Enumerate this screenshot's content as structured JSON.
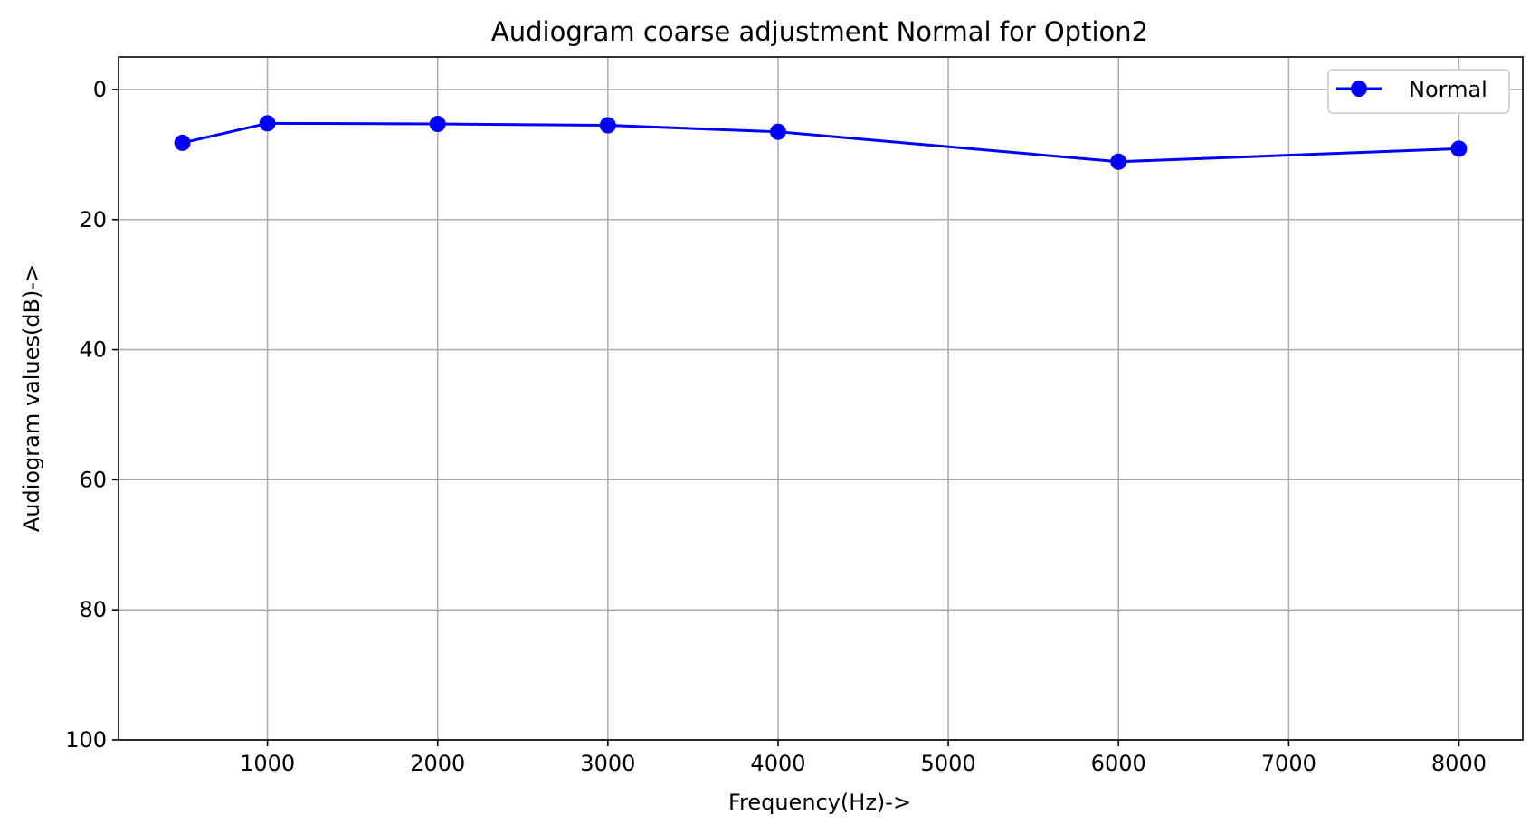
{
  "chart_data": {
    "type": "line",
    "title": "Audiogram coarse adjustment Normal for Option2",
    "xlabel": "Frequency(Hz)->",
    "ylabel": "Audiogram values(dB)->",
    "xlim": [
      125,
      8375
    ],
    "ylim": [
      100,
      -5
    ],
    "y_inverted": true,
    "grid": true,
    "legend_position": "top-right",
    "x_ticks": [
      1000,
      2000,
      3000,
      4000,
      5000,
      6000,
      7000,
      8000
    ],
    "x_tick_labels": [
      "1000",
      "2000",
      "3000",
      "4000",
      "5000",
      "6000",
      "7000",
      "8000"
    ],
    "y_ticks": [
      0,
      20,
      40,
      60,
      80,
      100
    ],
    "y_tick_labels": [
      "0",
      "20",
      "40",
      "60",
      "80",
      "100"
    ],
    "series": [
      {
        "name": "Normal",
        "color": "#0000ff",
        "marker": "circle",
        "x": [
          500,
          1000,
          2000,
          3000,
          4000,
          6000,
          8000
        ],
        "y": [
          8.2,
          5.2,
          5.3,
          5.5,
          6.5,
          11.1,
          9.1
        ]
      }
    ]
  }
}
